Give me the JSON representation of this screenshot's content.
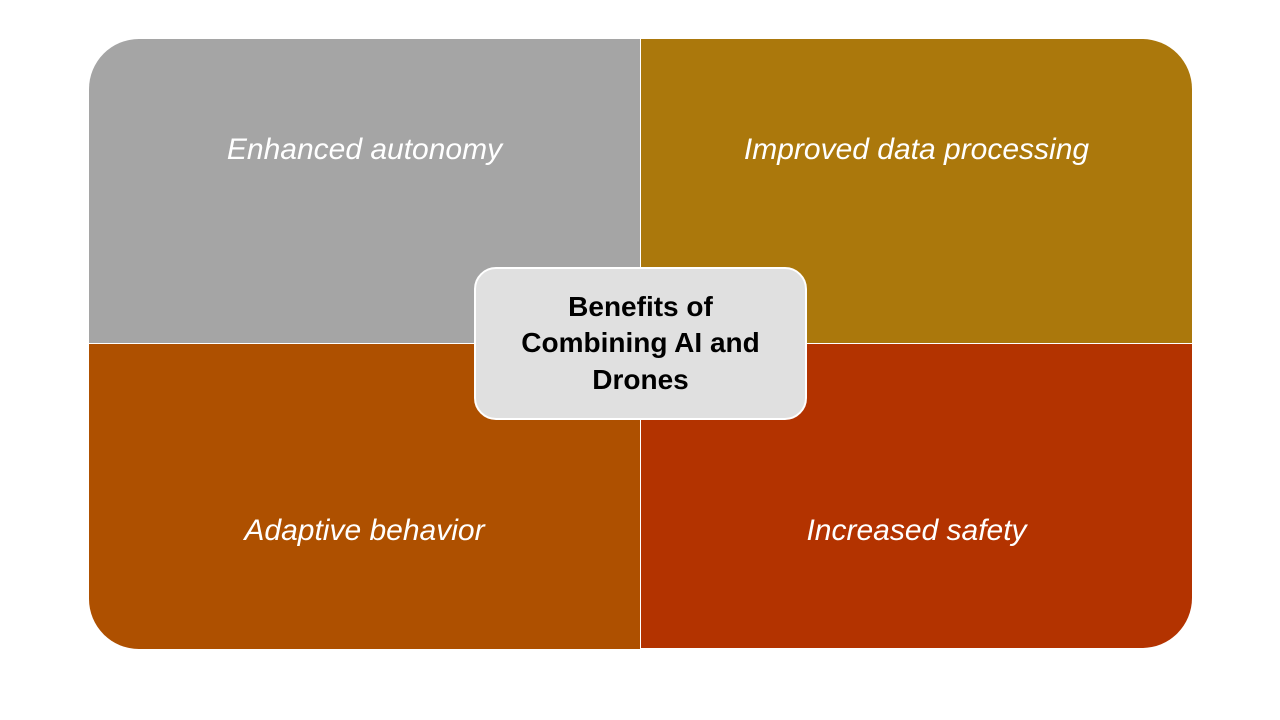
{
  "center": {
    "label": "Benefits of Combining AI and Drones"
  },
  "quadrants": [
    {
      "label": "Enhanced autonomy"
    },
    {
      "label": "Improved data processing"
    },
    {
      "label": "Adaptive behavior"
    },
    {
      "label": "Increased safety"
    }
  ]
}
